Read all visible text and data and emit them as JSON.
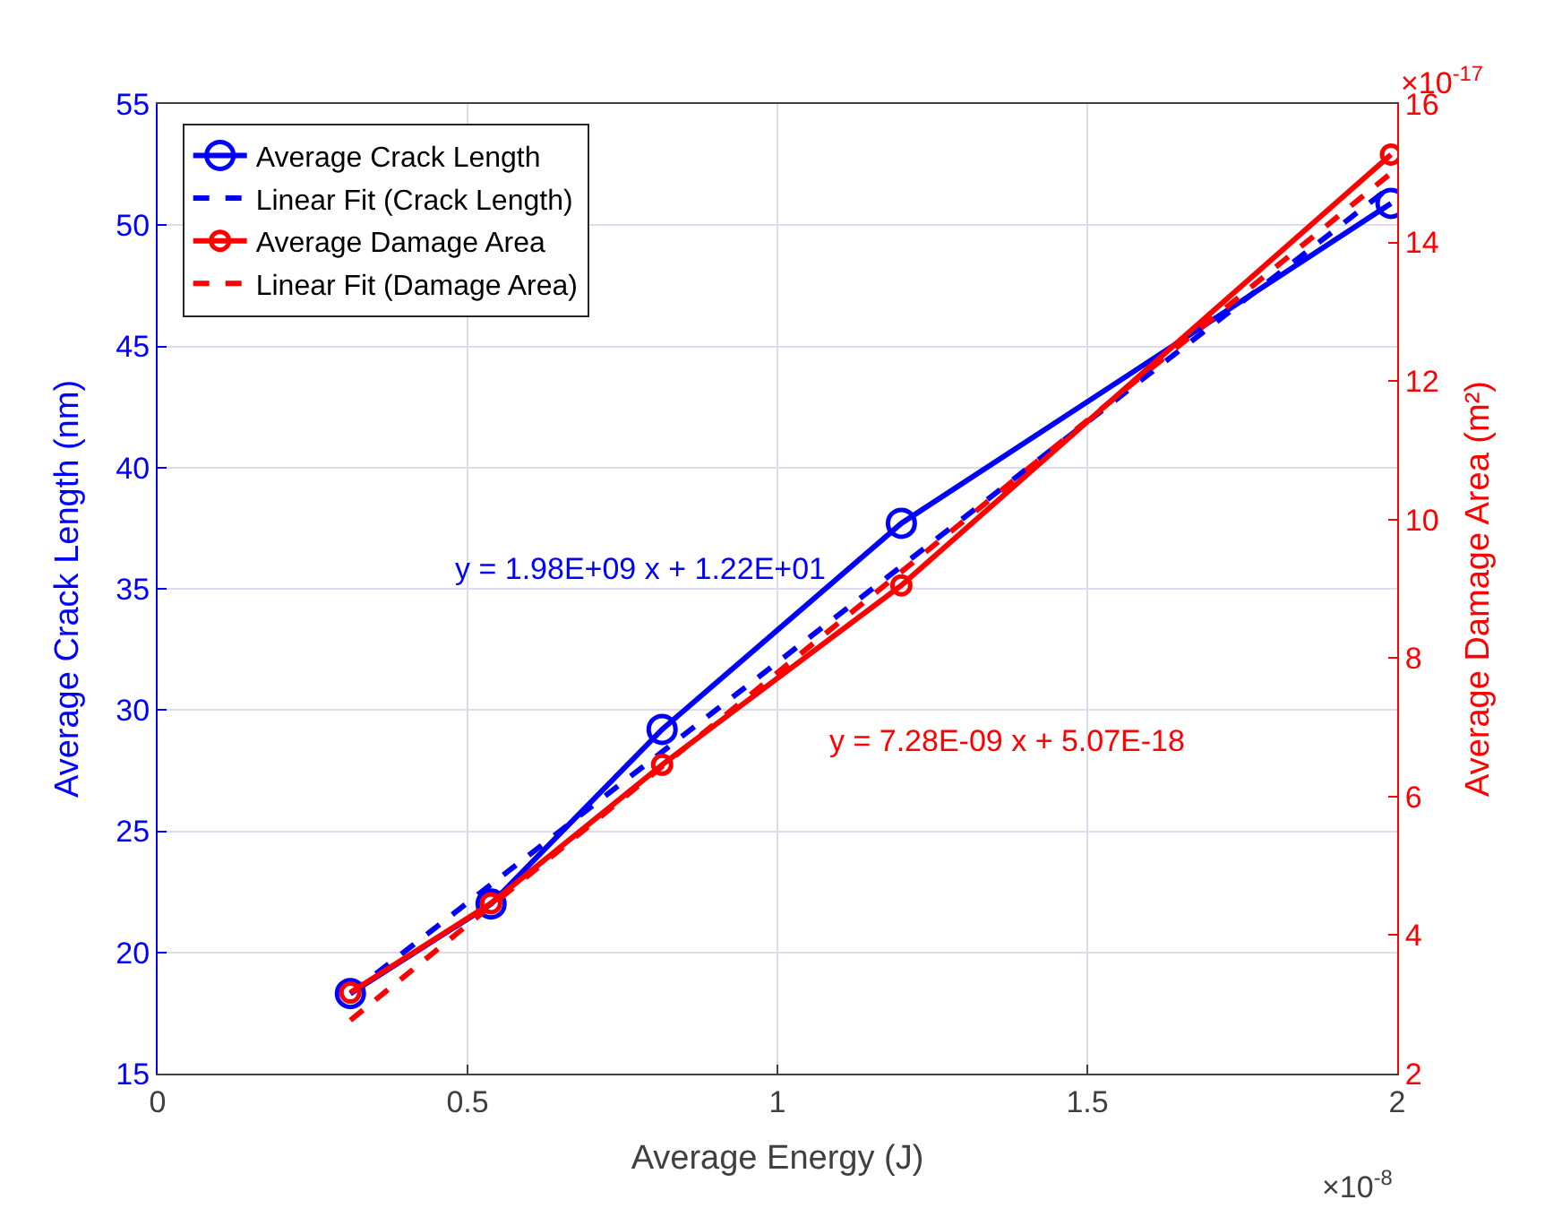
{
  "chart_data": {
    "type": "line",
    "xlabel": "Average Energy (J)",
    "ylabel": "Average Crack Length (nm)",
    "y2label": "Average Damage Area (m²)",
    "xlim": [
      0,
      2
    ],
    "xticks": [
      0,
      0.5,
      1,
      1.5,
      2
    ],
    "ylim": [
      15,
      55
    ],
    "yticks": [
      15,
      20,
      25,
      30,
      35,
      40,
      45,
      50,
      55
    ],
    "y2lim": [
      2,
      16
    ],
    "y2ticks": [
      2,
      4,
      6,
      8,
      10,
      12,
      14,
      16
    ],
    "grid": true,
    "legend": "top left",
    "series": [
      {
        "name": "Average Crack Length",
        "color": "#0000ff",
        "x": [
          0.311,
          0.538,
          0.814,
          1.2,
          1.99
        ],
        "values": [
          18.3,
          22.0,
          29.2,
          37.7,
          50.9
        ],
        "marker": "circle",
        "line_style": "solid"
      },
      {
        "name": "Linear Fit (Crack Length)",
        "color": "#0000ff",
        "x": [
          0.311,
          1.99
        ],
        "values": [
          18.3,
          51.6
        ],
        "marker": "none",
        "line_style": "dashed"
      },
      {
        "name": "Average Damage Area",
        "color": "#ff0000",
        "axis": "y2",
        "x": [
          0.311,
          0.538,
          0.814,
          1.2,
          1.99
        ],
        "values": [
          3.17,
          4.46,
          6.46,
          9.05,
          15.27
        ],
        "marker": "circle",
        "line_style": "solid"
      },
      {
        "name": "Linear Fit (Damage Area)",
        "color": "#ff0000",
        "axis": "y2",
        "x": [
          0.311,
          1.99
        ],
        "values": [
          2.77,
          15.0
        ],
        "marker": "none",
        "line_style": "dashed"
      }
    ],
    "annotations": [
      "y = 1.98E+09 x + 1.22E+01",
      "y = 7.28E-09 x + 5.07E-18",
      "×10$^{-8}$",
      "×10$^{-17}$"
    ]
  }
}
